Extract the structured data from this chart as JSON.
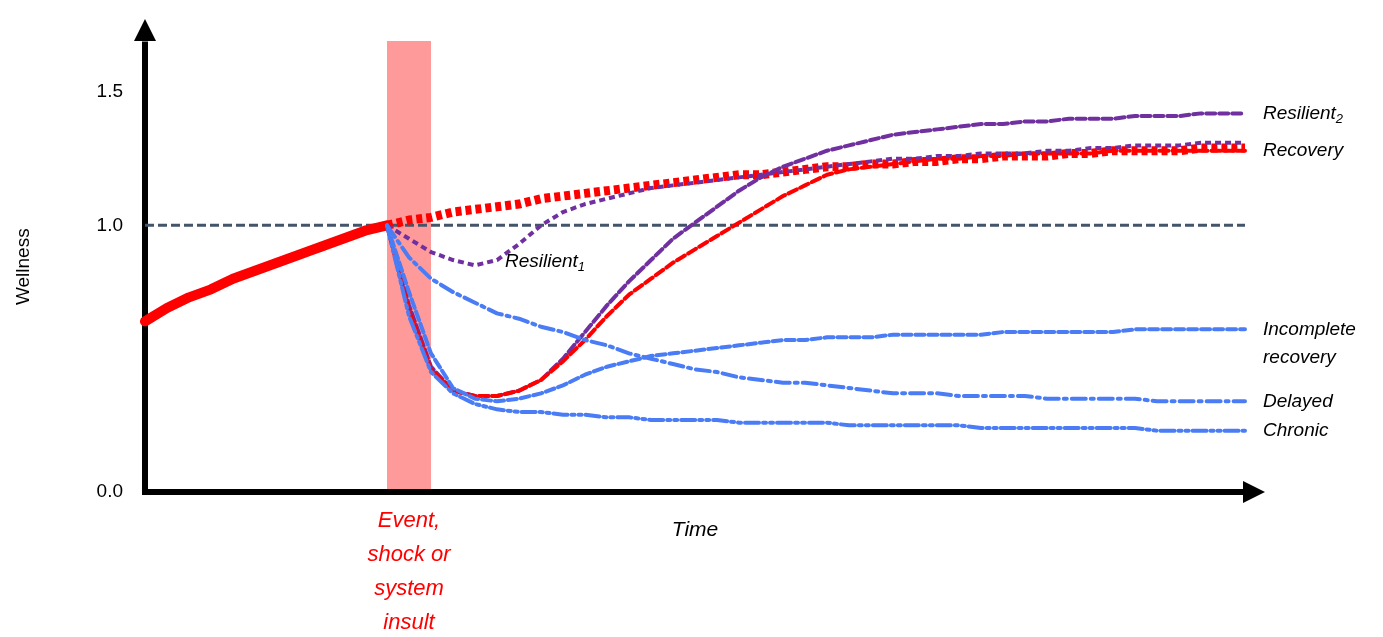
{
  "chart_data": {
    "type": "line",
    "xlabel": "Time",
    "ylabel": "Wellness",
    "categories": [
      null,
      null,
      null,
      null,
      null,
      null,
      null,
      null,
      null,
      null,
      null,
      null,
      null,
      null,
      null,
      null,
      null,
      null,
      null,
      null,
      null,
      null,
      null,
      null,
      null,
      null,
      null,
      null,
      null,
      null,
      null,
      null,
      null,
      null,
      null,
      null,
      null,
      null,
      null,
      null,
      null,
      null,
      null,
      null,
      null,
      null,
      null,
      null,
      null,
      null,
      null
    ],
    "ylim": [
      0,
      1.69
    ],
    "yticks": [
      {
        "value": 0,
        "label": "0.0"
      },
      {
        "value": 1,
        "label": "1.0"
      },
      {
        "value": 1.5,
        "label": "1.5"
      }
    ],
    "tick_labels": "y",
    "grid": false,
    "legend": false,
    "marker": "none",
    "ref_lines": [
      {
        "axis": "y",
        "value": 1,
        "color": "#44546a",
        "line_style": "dashed"
      }
    ],
    "annotations": [
      "Event, shock or system insult"
    ],
    "series": [
      {
        "color": "#ff0000",
        "line_style": "solid",
        "values": [
          0.64,
          0.69,
          0.73,
          0.76,
          0.8,
          0.83,
          0.86,
          0.89,
          0.92,
          0.95,
          0.98,
          1.0,
          null,
          null,
          null,
          null,
          null,
          null,
          null,
          null,
          null,
          null,
          null,
          null,
          null,
          null,
          null,
          null,
          null,
          null,
          null,
          null,
          null,
          null,
          null,
          null,
          null,
          null,
          null,
          null,
          null,
          null,
          null,
          null,
          null,
          null,
          null,
          null,
          null,
          null,
          null
        ]
      },
      {
        "color": "#ff0000",
        "line_style": "dotted",
        "values": [
          null,
          null,
          null,
          null,
          null,
          null,
          null,
          null,
          null,
          null,
          null,
          1.0,
          1.02,
          1.03,
          1.05,
          1.06,
          1.07,
          1.08,
          1.1,
          1.11,
          1.12,
          1.13,
          1.14,
          1.15,
          1.16,
          1.17,
          1.18,
          1.19,
          1.19,
          1.2,
          1.21,
          1.22,
          1.22,
          1.23,
          1.23,
          1.24,
          1.24,
          1.25,
          1.25,
          1.26,
          1.26,
          1.26,
          1.27,
          1.27,
          1.28,
          1.28,
          1.28,
          1.28,
          1.29,
          1.29,
          1.29
        ]
      },
      {
        "name": "Resilient$_{2}$",
        "color": "#7030a0",
        "line_style": "dashed",
        "values": [
          null,
          null,
          null,
          null,
          null,
          null,
          null,
          null,
          null,
          null,
          null,
          1.0,
          0.7,
          0.47,
          0.38,
          0.36,
          0.36,
          0.38,
          0.42,
          0.5,
          0.6,
          0.7,
          0.79,
          0.87,
          0.95,
          1.01,
          1.07,
          1.13,
          1.18,
          1.22,
          1.25,
          1.28,
          1.3,
          1.32,
          1.34,
          1.35,
          1.36,
          1.37,
          1.38,
          1.38,
          1.39,
          1.39,
          1.4,
          1.4,
          1.4,
          1.41,
          1.41,
          1.41,
          1.42,
          1.42,
          1.42
        ]
      },
      {
        "name": "Recovery",
        "color": "#ff0000",
        "line_style": "dashed",
        "values": [
          null,
          null,
          null,
          null,
          null,
          null,
          null,
          null,
          null,
          null,
          null,
          1.0,
          0.68,
          0.46,
          0.38,
          0.36,
          0.36,
          0.38,
          0.42,
          0.49,
          0.57,
          0.66,
          0.74,
          0.8,
          0.86,
          0.91,
          0.96,
          1.01,
          1.06,
          1.11,
          1.15,
          1.19,
          1.21,
          1.22,
          1.23,
          1.24,
          1.25,
          1.25,
          1.26,
          1.26,
          1.27,
          1.27,
          1.27,
          1.27,
          1.28,
          1.28,
          1.28,
          1.28,
          1.28,
          1.28,
          1.28
        ]
      },
      {
        "name": "Resilient$_{1}$",
        "color": "#7030a0",
        "line_style": "dotted",
        "values": [
          null,
          null,
          null,
          null,
          null,
          null,
          null,
          null,
          null,
          null,
          null,
          1.0,
          0.95,
          0.9,
          0.87,
          0.85,
          0.87,
          0.93,
          1.0,
          1.05,
          1.08,
          1.1,
          1.12,
          1.14,
          1.15,
          1.16,
          1.17,
          1.18,
          1.19,
          1.2,
          1.21,
          1.22,
          1.23,
          1.24,
          1.25,
          1.25,
          1.26,
          1.26,
          1.27,
          1.27,
          1.27,
          1.28,
          1.28,
          1.29,
          1.29,
          1.3,
          1.3,
          1.3,
          1.31,
          1.31,
          1.31
        ]
      },
      {
        "name": "Incomplete recovery",
        "color": "#4a7cf5",
        "line_style": "dashed",
        "values": [
          null,
          null,
          null,
          null,
          null,
          null,
          null,
          null,
          null,
          null,
          null,
          1.0,
          0.75,
          0.52,
          0.39,
          0.35,
          0.34,
          0.35,
          0.37,
          0.4,
          0.44,
          0.47,
          0.49,
          0.51,
          0.52,
          0.53,
          0.54,
          0.55,
          0.56,
          0.57,
          0.57,
          0.58,
          0.58,
          0.58,
          0.59,
          0.59,
          0.59,
          0.59,
          0.59,
          0.6,
          0.6,
          0.6,
          0.6,
          0.6,
          0.6,
          0.61,
          0.61,
          0.61,
          0.61,
          0.61,
          0.61
        ]
      },
      {
        "name": "Delayed",
        "color": "#4a7cf5",
        "line_style": "dashdot",
        "values": [
          null,
          null,
          null,
          null,
          null,
          null,
          null,
          null,
          null,
          null,
          null,
          1.0,
          0.88,
          0.8,
          0.75,
          0.71,
          0.67,
          0.65,
          0.62,
          0.6,
          0.57,
          0.55,
          0.52,
          0.5,
          0.48,
          0.46,
          0.45,
          0.43,
          0.42,
          0.41,
          0.41,
          0.4,
          0.39,
          0.38,
          0.37,
          0.37,
          0.37,
          0.36,
          0.36,
          0.36,
          0.36,
          0.35,
          0.35,
          0.35,
          0.35,
          0.35,
          0.34,
          0.34,
          0.34,
          0.34,
          0.34
        ]
      },
      {
        "name": "Chronic",
        "color": "#4a7cf5",
        "line_style": "dashdotdot",
        "values": [
          null,
          null,
          null,
          null,
          null,
          null,
          null,
          null,
          null,
          null,
          null,
          1.0,
          0.66,
          0.45,
          0.37,
          0.33,
          0.31,
          0.3,
          0.3,
          0.29,
          0.29,
          0.28,
          0.28,
          0.27,
          0.27,
          0.27,
          0.27,
          0.26,
          0.26,
          0.26,
          0.26,
          0.26,
          0.25,
          0.25,
          0.25,
          0.25,
          0.25,
          0.25,
          0.24,
          0.24,
          0.24,
          0.24,
          0.24,
          0.24,
          0.24,
          0.24,
          0.23,
          0.23,
          0.23,
          0.23,
          0.23
        ]
      }
    ]
  }
}
